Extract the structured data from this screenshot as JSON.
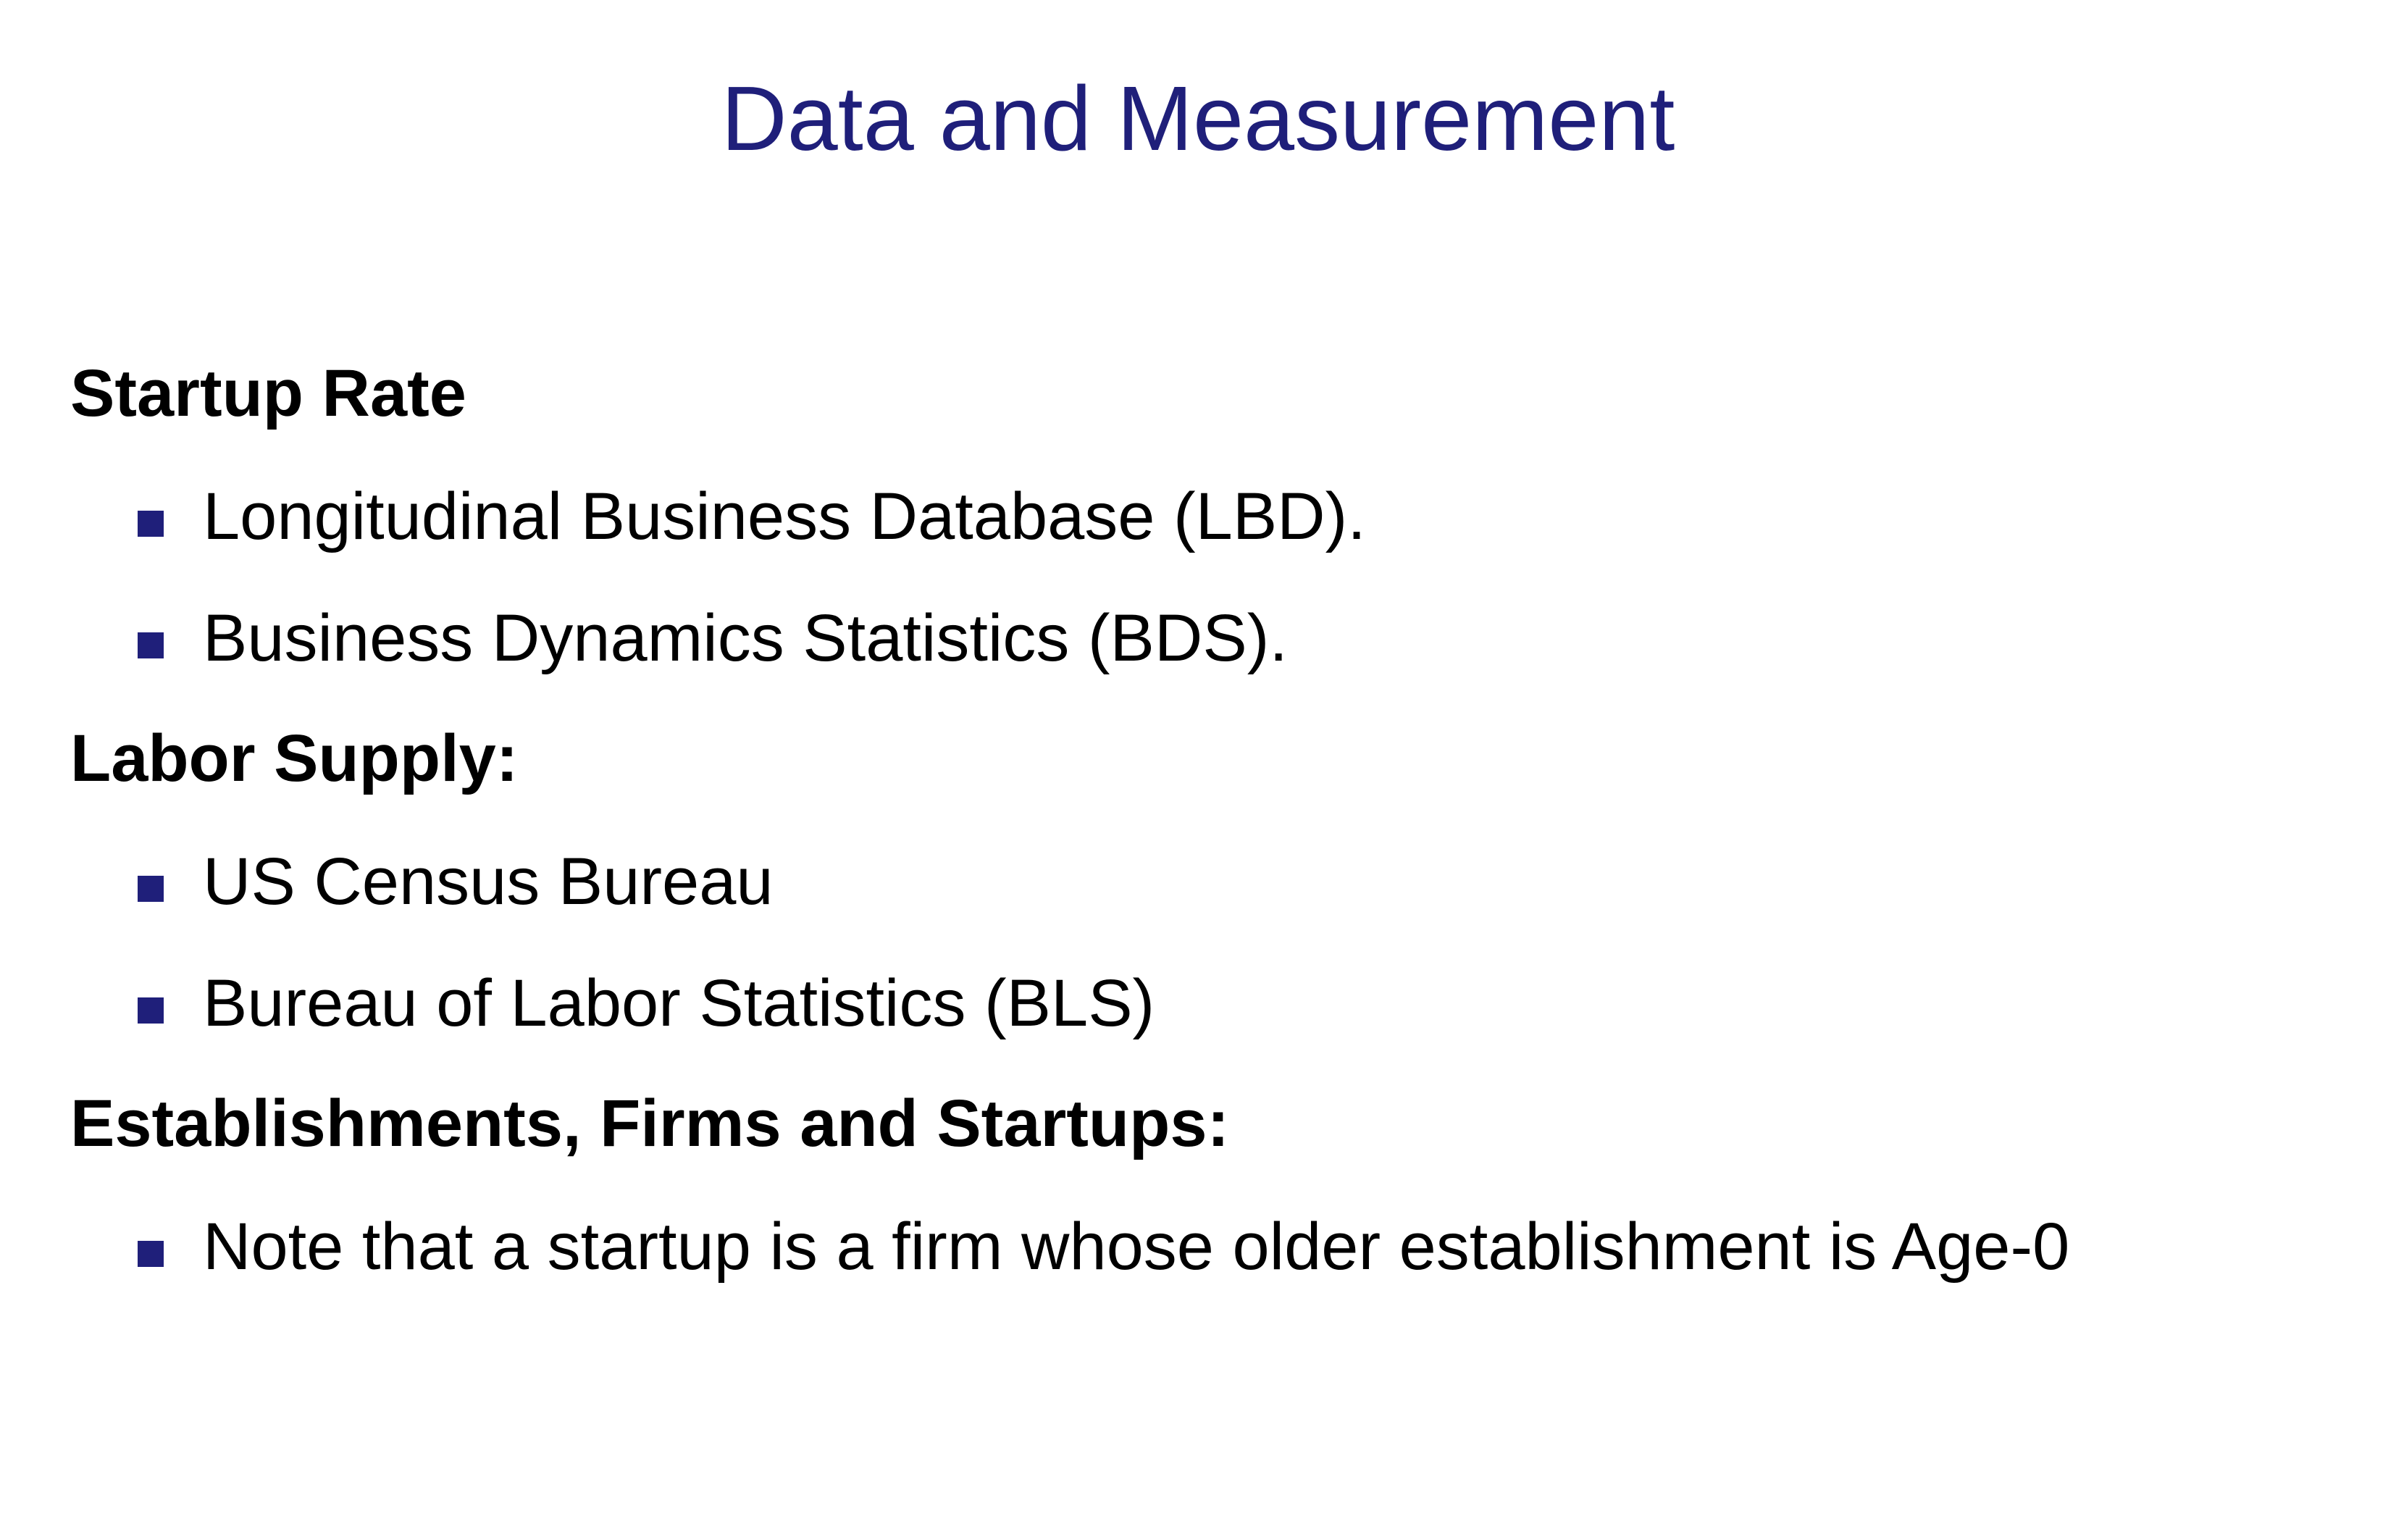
{
  "title": "Data and Measurement",
  "accent_color": "#1f1f7a",
  "sections": [
    {
      "heading": "Startup Rate",
      "items": [
        "Longitudinal Business Database (LBD).",
        "Business Dynamics Statistics (BDS)."
      ]
    },
    {
      "heading": "Labor Supply:",
      "items": [
        "US Census Bureau",
        "Bureau of Labor Statistics (BLS)"
      ]
    },
    {
      "heading": "Establishments, Firms and Startups:",
      "items": [
        "Note that a startup is a firm whose older establishment is Age-0"
      ]
    }
  ]
}
